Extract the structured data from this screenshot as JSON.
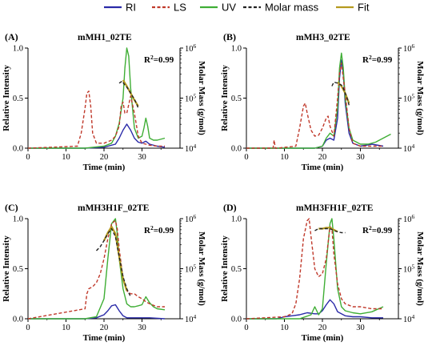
{
  "legend": [
    {
      "name": "RI",
      "color": "#2a2aa8",
      "dash": "solid"
    },
    {
      "name": "LS",
      "color": "#c0392b",
      "dash": "dash"
    },
    {
      "name": "UV",
      "color": "#3fae35",
      "dash": "solid"
    },
    {
      "name": "Molar mass",
      "color": "#222222",
      "dash": "dash"
    },
    {
      "name": "Fit",
      "color": "#b59a1f",
      "dash": "solid"
    }
  ],
  "chart_data": [
    {
      "type": "line",
      "panel_label": "(A)",
      "title": "mMH1_02TE",
      "xlabel": "Time (min)",
      "ylabel": "Relative Intensity",
      "y2label": "Molar Mass (g/mol)",
      "xlim": [
        0,
        40
      ],
      "ylim": [
        0,
        1.0
      ],
      "y2lim": [
        10000,
        1000000
      ],
      "y2scale": "log",
      "xticks": [
        "0",
        "10",
        "20",
        "30"
      ],
      "yticks": [
        "0.0",
        "0.5",
        "1.0"
      ],
      "y2ticks": [
        "10^4",
        "10^5",
        "10^6"
      ],
      "annotation": "R^2=0.99",
      "series": [
        {
          "name": "RI",
          "x": [
            0,
            15,
            20,
            23,
            24,
            25,
            26,
            27,
            28,
            29,
            30,
            31,
            32,
            34,
            36
          ],
          "y": [
            0,
            0,
            0.01,
            0.04,
            0.1,
            0.18,
            0.24,
            0.18,
            0.1,
            0.06,
            0.05,
            0.07,
            0.04,
            0.02,
            0.01
          ]
        },
        {
          "name": "LS",
          "x": [
            0,
            13,
            14,
            15,
            15.5,
            16,
            16.5,
            17,
            18,
            20,
            22,
            23,
            24,
            24.5,
            25,
            25.5,
            26,
            27,
            28,
            29,
            30,
            31,
            32,
            34,
            36
          ],
          "y": [
            0,
            0.02,
            0.15,
            0.4,
            0.55,
            0.57,
            0.42,
            0.15,
            0.05,
            0.05,
            0.08,
            0.12,
            0.22,
            0.42,
            0.46,
            0.35,
            0.35,
            0.52,
            0.35,
            0.12,
            0.05,
            0.04,
            0.03,
            0.02,
            0.02
          ]
        },
        {
          "name": "UV",
          "x": [
            0,
            15,
            20,
            22,
            23,
            24,
            25,
            25.5,
            26,
            26.5,
            27,
            28,
            29,
            30,
            30.5,
            31,
            31.5,
            32,
            33,
            34,
            36
          ],
          "y": [
            0,
            0,
            0.02,
            0.05,
            0.12,
            0.25,
            0.5,
            0.8,
            1.0,
            0.92,
            0.6,
            0.2,
            0.1,
            0.12,
            0.2,
            0.3,
            0.22,
            0.1,
            0.08,
            0.08,
            0.1
          ]
        },
        {
          "name": "Molar mass",
          "x": [
            24,
            24.8,
            25.5,
            26,
            26.5,
            27,
            27.5,
            28,
            28.5,
            29
          ],
          "y": [
            0.65,
            0.67,
            0.63,
            0.61,
            0.58,
            0.55,
            0.52,
            0.49,
            0.45,
            0.4
          ]
        },
        {
          "name": "Fit",
          "x": [
            25,
            26,
            27,
            28,
            29
          ],
          "y": [
            0.68,
            0.62,
            0.55,
            0.48,
            0.42
          ]
        }
      ]
    },
    {
      "type": "line",
      "panel_label": "(B)",
      "title": "mMH3_02TE",
      "xlabel": "Time (min)",
      "ylabel": "Relative Intensity",
      "y2label": "Molar Mass (g/mol)",
      "xlim": [
        0,
        40
      ],
      "ylim": [
        0,
        1.0
      ],
      "y2lim": [
        10000,
        1000000
      ],
      "y2scale": "log",
      "xticks": [
        "0",
        "10",
        "20",
        "30"
      ],
      "yticks": [
        "0.0",
        "0.5",
        "1.0"
      ],
      "y2ticks": [
        "10^4",
        "10^5",
        "10^6"
      ],
      "annotation": "R^2=0.99",
      "series": [
        {
          "name": "RI",
          "x": [
            0,
            18,
            20,
            21,
            22,
            23,
            24,
            24.5,
            25,
            25.5,
            26,
            27,
            28,
            30,
            33,
            36
          ],
          "y": [
            0,
            0,
            0.02,
            0.08,
            0.1,
            0.08,
            0.3,
            0.7,
            0.88,
            0.75,
            0.45,
            0.15,
            0.05,
            0.02,
            0.04,
            0.02
          ]
        },
        {
          "name": "LS",
          "x": [
            0,
            7,
            7.3,
            7.6,
            8,
            13,
            14,
            15,
            15.5,
            16,
            17,
            18,
            19,
            20,
            21,
            21.5,
            22,
            23,
            24,
            24.5,
            25,
            25.5,
            26,
            27,
            28,
            30,
            33,
            36
          ],
          "y": [
            0,
            0,
            0.08,
            0,
            0,
            0.02,
            0.2,
            0.42,
            0.45,
            0.35,
            0.18,
            0.12,
            0.13,
            0.2,
            0.3,
            0.32,
            0.22,
            0.12,
            0.5,
            0.75,
            0.85,
            0.7,
            0.55,
            0.2,
            0.05,
            0.02,
            0.02,
            0.02
          ]
        },
        {
          "name": "UV",
          "x": [
            0,
            18,
            20,
            21,
            22,
            23,
            24,
            24.5,
            25,
            25.5,
            26,
            27,
            28,
            30,
            32,
            34,
            36,
            38
          ],
          "y": [
            0,
            0,
            0.02,
            0.1,
            0.15,
            0.12,
            0.4,
            0.8,
            0.95,
            0.8,
            0.5,
            0.2,
            0.08,
            0.04,
            0.04,
            0.06,
            0.1,
            0.14
          ]
        },
        {
          "name": "Molar mass",
          "x": [
            22.5,
            23,
            24,
            25,
            25.5,
            26,
            26.5,
            27
          ],
          "y": [
            0.62,
            0.66,
            0.65,
            0.63,
            0.6,
            0.55,
            0.5,
            0.43
          ]
        },
        {
          "name": "Fit",
          "x": [
            24,
            25,
            26,
            27
          ],
          "y": [
            0.66,
            0.62,
            0.55,
            0.45
          ]
        }
      ]
    },
    {
      "type": "line",
      "panel_label": "(C)",
      "title": "mMH3H1F_02TE",
      "xlabel": "Time (min)",
      "ylabel": "Relative Intensity",
      "y2label": "Molar Mass (g/mol)",
      "xlim": [
        0,
        40
      ],
      "ylim": [
        0,
        1.0
      ],
      "y2lim": [
        10000,
        1000000
      ],
      "y2scale": "log",
      "xticks": [
        "0",
        "10",
        "20",
        "30"
      ],
      "yticks": [
        "0.0",
        "0.5",
        "1.0"
      ],
      "y2ticks": [
        "10^4",
        "10^5",
        "10^6"
      ],
      "annotation": "R^2=0.99",
      "series": [
        {
          "name": "RI",
          "x": [
            0,
            15,
            18,
            20,
            21,
            22,
            23,
            24,
            25,
            26,
            28,
            30,
            32,
            36
          ],
          "y": [
            0,
            0,
            0.01,
            0.04,
            0.08,
            0.13,
            0.14,
            0.08,
            0.03,
            0.01,
            0.01,
            0.01,
            0.01,
            0.0
          ]
        },
        {
          "name": "LS",
          "x": [
            0,
            15,
            15.5,
            16,
            17,
            18,
            19,
            20,
            21,
            22,
            23,
            23.5,
            24,
            25,
            26,
            27,
            28,
            29,
            30,
            31,
            32,
            34,
            36
          ],
          "y": [
            0,
            0.1,
            0.25,
            0.3,
            0.32,
            0.36,
            0.45,
            0.6,
            0.8,
            0.95,
            0.98,
            0.9,
            0.7,
            0.4,
            0.28,
            0.25,
            0.25,
            0.22,
            0.2,
            0.17,
            0.15,
            0.12,
            0.12
          ]
        },
        {
          "name": "UV",
          "x": [
            0,
            15,
            18,
            20,
            21,
            22,
            23,
            23.5,
            24,
            25,
            26,
            27,
            28,
            29,
            30,
            31,
            32,
            33,
            34,
            36
          ],
          "y": [
            0,
            0,
            0.02,
            0.2,
            0.6,
            0.95,
            1.0,
            0.85,
            0.6,
            0.3,
            0.15,
            0.12,
            0.12,
            0.13,
            0.14,
            0.22,
            0.16,
            0.12,
            0.1,
            0.09
          ]
        },
        {
          "name": "Molar mass",
          "x": [
            18,
            19,
            20,
            21,
            22,
            23,
            24,
            25,
            26,
            27
          ],
          "y": [
            0.68,
            0.72,
            0.78,
            0.85,
            0.9,
            0.82,
            0.62,
            0.42,
            0.3,
            0.22
          ]
        },
        {
          "name": "Fit",
          "x": [
            20,
            21,
            22,
            23,
            24,
            25,
            26
          ],
          "y": [
            0.78,
            0.86,
            0.92,
            0.85,
            0.62,
            0.4,
            0.28
          ]
        }
      ]
    },
    {
      "type": "line",
      "panel_label": "(D)",
      "title": "mMH3FH1F_02TE",
      "xlabel": "Time (min)",
      "ylabel": "Relative Intensity",
      "y2label": "Molar Mass (g/mol)",
      "xlim": [
        0,
        40
      ],
      "ylim": [
        0,
        1.0
      ],
      "y2lim": [
        10000,
        1000000
      ],
      "y2scale": "log",
      "xticks": [
        "0",
        "10",
        "20",
        "30"
      ],
      "yticks": [
        "0.0",
        "0.5",
        "1.0"
      ],
      "y2ticks": [
        "10^4",
        "10^5",
        "10^6"
      ],
      "annotation": "R^2=0.99",
      "series": [
        {
          "name": "RI",
          "x": [
            0,
            8,
            10,
            12,
            14,
            16,
            18,
            19,
            20,
            21,
            22,
            23,
            24,
            26,
            28,
            30,
            33,
            36
          ],
          "y": [
            0,
            0,
            0.02,
            0.03,
            0.04,
            0.06,
            0.05,
            0.05,
            0.08,
            0.14,
            0.19,
            0.15,
            0.07,
            0.03,
            0.02,
            0.02,
            0.01,
            0.01
          ]
        },
        {
          "name": "LS",
          "x": [
            0,
            10,
            12,
            13,
            14,
            15,
            16,
            16.5,
            17,
            18,
            19,
            20,
            21,
            22,
            22.5,
            23,
            24,
            25,
            26,
            28,
            30,
            33,
            36
          ],
          "y": [
            0,
            0.02,
            0.05,
            0.15,
            0.4,
            0.8,
            0.98,
            1.0,
            0.82,
            0.5,
            0.42,
            0.45,
            0.6,
            0.92,
            0.9,
            0.65,
            0.35,
            0.2,
            0.15,
            0.12,
            0.12,
            0.1,
            0.1
          ]
        },
        {
          "name": "UV",
          "x": [
            0,
            14,
            17,
            18,
            19,
            20,
            21,
            22,
            22.5,
            23,
            24,
            25,
            26,
            28,
            30,
            33,
            36
          ],
          "y": [
            0,
            0,
            0.04,
            0.12,
            0.04,
            0.1,
            0.55,
            0.95,
            1.0,
            0.8,
            0.3,
            0.12,
            0.08,
            0.06,
            0.05,
            0.07,
            0.12
          ]
        },
        {
          "name": "Molar mass",
          "x": [
            18,
            19,
            20,
            21,
            22,
            23,
            24,
            25,
            26
          ],
          "y": [
            0.88,
            0.9,
            0.9,
            0.9,
            0.9,
            0.88,
            0.87,
            0.86,
            0.86
          ]
        },
        {
          "name": "Fit",
          "x": [
            19,
            20,
            21,
            22,
            23,
            24
          ],
          "y": [
            0.9,
            0.9,
            0.91,
            0.91,
            0.89,
            0.87
          ]
        }
      ]
    }
  ]
}
